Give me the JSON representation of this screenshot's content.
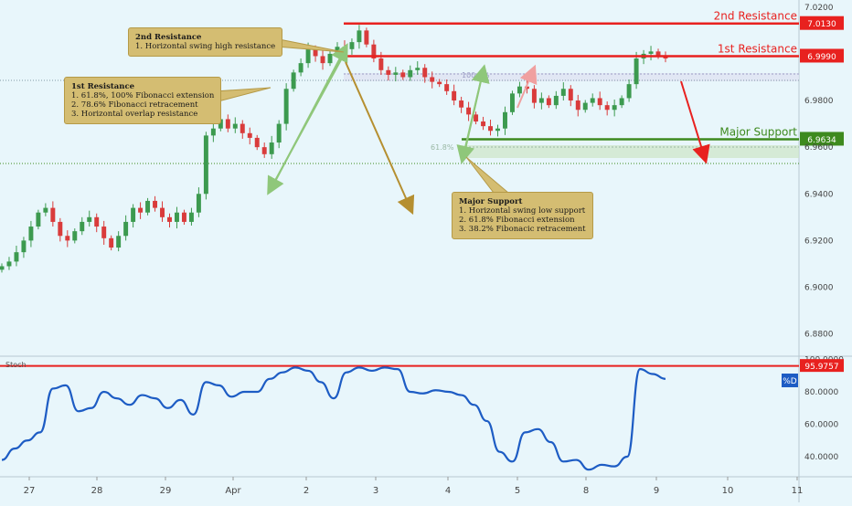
{
  "chart_data": [
    {
      "type": "candlestick",
      "instrument_note": "",
      "x_ticks": [
        "27",
        "28",
        "29",
        "Apr",
        "2",
        "3",
        "4",
        "5",
        "8",
        "9",
        "10",
        "11"
      ],
      "y_ticks": [
        "7.0200",
        "6.9800",
        "6.9600",
        "6.9400",
        "6.9200",
        "6.9000",
        "6.8800"
      ],
      "ylim": [
        6.869,
        7.0245
      ],
      "levels": [
        {
          "label": "2nd Resistance",
          "value": 7.013,
          "price_label": "7.0130",
          "color": "#e8211f"
        },
        {
          "label": "1st Resistance",
          "value": 6.999,
          "price_label": "6.9990",
          "color": "#e8211f"
        },
        {
          "label": "Major Support",
          "value": 6.9634,
          "price_label": "6.9634",
          "color": "#3d8a1e"
        }
      ],
      "fib_labels": [
        "100.0%",
        "61.8%"
      ],
      "approx_close_series": [
        6.909,
        6.911,
        6.915,
        6.92,
        6.926,
        6.932,
        6.934,
        6.928,
        6.922,
        6.92,
        6.924,
        6.928,
        6.93,
        6.926,
        6.921,
        6.917,
        6.922,
        6.928,
        6.934,
        6.932,
        6.937,
        6.934,
        6.93,
        6.928,
        6.932,
        6.928,
        6.932,
        6.94,
        6.965,
        6.968,
        6.972,
        6.968,
        6.97,
        6.966,
        6.964,
        6.96,
        6.957,
        6.962,
        6.97,
        6.985,
        6.992,
        6.996,
        7.002,
        6.999,
        6.996,
        7.0,
        7.003,
        7.002,
        7.005,
        7.01,
        7.004,
        6.998,
        6.993,
        6.991,
        6.992,
        6.99,
        6.993,
        6.994,
        6.99,
        6.988,
        6.987,
        6.984,
        6.98,
        6.977,
        6.974,
        6.971,
        6.969,
        6.967,
        6.968,
        6.975,
        6.983,
        6.986,
        6.985,
        6.979,
        6.981,
        6.978,
        6.982,
        6.985,
        6.98,
        6.976,
        6.979,
        6.981,
        6.978,
        6.976,
        6.978,
        6.981,
        6.987,
        6.998,
        7.0,
        7.001,
        6.999,
        6.998
      ]
    },
    {
      "type": "line",
      "title": "Stoch",
      "legend": "%D",
      "y_ticks": [
        "100.0000",
        "80.0000",
        "60.0000",
        "40.0000"
      ],
      "ylim": [
        32,
        100
      ],
      "level": {
        "value": 95.9757,
        "label": "95.9757",
        "color": "#e8211f"
      },
      "approx_values": [
        38,
        45,
        50,
        55,
        82,
        84,
        68,
        70,
        80,
        76,
        72,
        78,
        76,
        70,
        75,
        66,
        86,
        84,
        77,
        80,
        80,
        88,
        92,
        95,
        93,
        86,
        76,
        92,
        95,
        93,
        95,
        94,
        80,
        79,
        81,
        80,
        78,
        72,
        62,
        43,
        37,
        55,
        57,
        49,
        37,
        38,
        32,
        35,
        34,
        40,
        94,
        91,
        88
      ]
    }
  ],
  "callouts": [
    {
      "title": "2nd Resistance",
      "lines": [
        "1. Horizontal swing high resistance"
      ]
    },
    {
      "title": "1st Resistance",
      "lines": [
        "1. 61.8%, 100% Fibonacci extension",
        "2. 78.6% Fibonacci retracement",
        "3. Horizontal overlap resistance"
      ]
    },
    {
      "title": "Major Support",
      "lines": [
        "1. Horizontal swing low support",
        "2. 61.8% Fibonacci extension",
        "3. 38.2% Fibonacic retracement"
      ]
    }
  ],
  "colors": {
    "background": "#e8f6fb",
    "up": "#3c9a4f",
    "down": "#d93b3b",
    "stoch": "#1d5cc4",
    "resistance": "#e8211f",
    "support": "#3d8a1e",
    "callout": "#d4bd72"
  }
}
